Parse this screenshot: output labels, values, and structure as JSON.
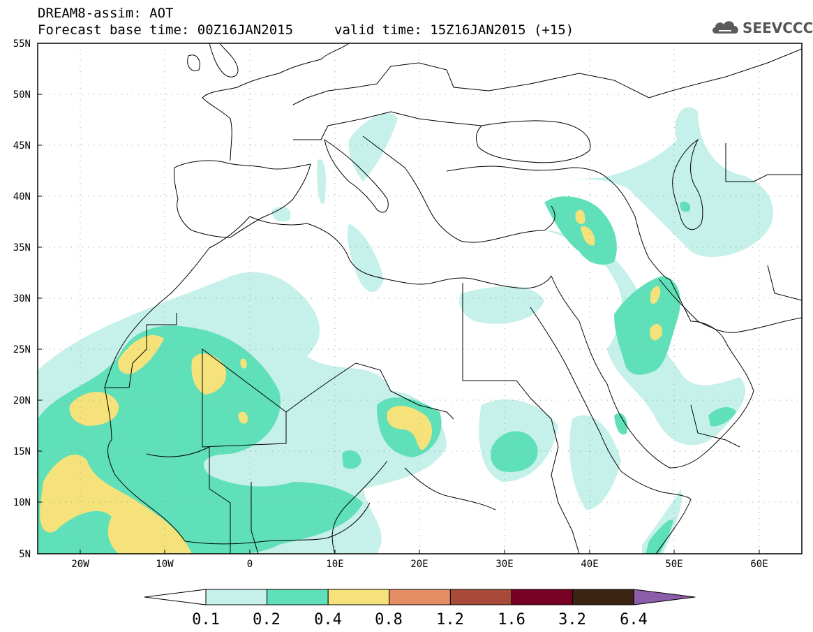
{
  "title": {
    "line1": "DREAM8-assim: AOT",
    "line2": "Forecast base time: 00Z16JAN2015",
    "valid": "valid time: 15Z16JAN2015 (+15)"
  },
  "logo": {
    "text": "SEEVCCC",
    "icon": "cloud-icon"
  },
  "axes": {
    "lat_labels": [
      "55N",
      "50N",
      "45N",
      "40N",
      "35N",
      "30N",
      "25N",
      "20N",
      "15N",
      "10N",
      "5N"
    ],
    "lon_labels": [
      "20W",
      "10W",
      "0",
      "10E",
      "20E",
      "30E",
      "40E",
      "50E",
      "60E"
    ],
    "lat_range": [
      5,
      55
    ],
    "lon_range": [
      -25,
      65
    ],
    "grid": "dotted"
  },
  "colorbar": {
    "labels": [
      "0.1",
      "0.2",
      "0.4",
      "0.8",
      "1.2",
      "1.6",
      "3.2",
      "6.4"
    ],
    "colors": [
      "#ffffff",
      "#c6f0ea",
      "#5fe0b8",
      "#f5e27a",
      "#e58e66",
      "#a84a3a",
      "#780024",
      "#3d2412",
      "#8c5da8"
    ]
  }
}
